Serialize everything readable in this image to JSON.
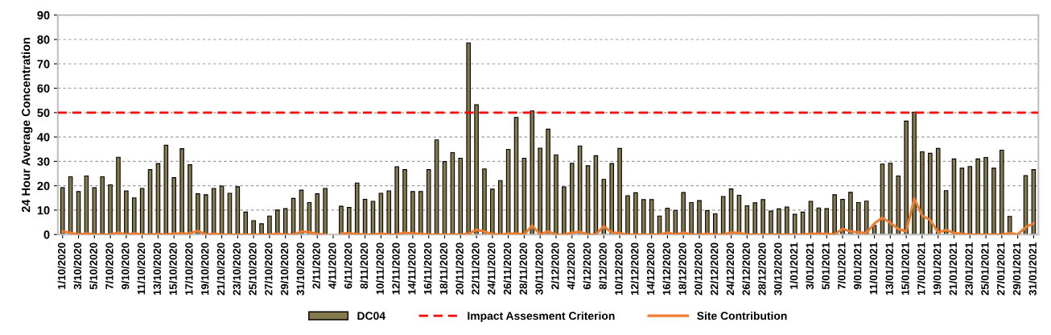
{
  "chart_data": {
    "type": "bar",
    "ylabel": "24 Hour Average Concentration",
    "categories": [
      "1/10/2020",
      null,
      "3/10/2020",
      null,
      "5/10/2020",
      null,
      "7/10/2020",
      null,
      "9/10/2020",
      null,
      "11/10/2020",
      null,
      "13/10/2020",
      null,
      "15/10/2020",
      null,
      "17/10/2020",
      null,
      "19/10/2020",
      null,
      "21/10/2020",
      null,
      "23/10/2020",
      null,
      "25/10/2020",
      null,
      "27/10/2020",
      null,
      "29/10/2020",
      null,
      "31/10/2020",
      null,
      "2/11/2020",
      null,
      "4/11/2020",
      null,
      "6/11/2020",
      null,
      "8/11/2020",
      null,
      "10/11/2020",
      null,
      "12/11/2020",
      null,
      "14/11/2020",
      null,
      "16/11/2020",
      null,
      "18/11/2020",
      null,
      "20/11/2020",
      null,
      "22/11/2020",
      null,
      "24/11/2020",
      null,
      "26/11/2020",
      null,
      "28/11/2020",
      null,
      "30/11/2020",
      null,
      "2/12/2020",
      null,
      "4/12/2020",
      null,
      "6/12/2020",
      null,
      "8/12/2020",
      null,
      "10/12/2020",
      null,
      "12/12/2020",
      null,
      "14/12/2020",
      null,
      "16/12/2020",
      null,
      "18/12/2020",
      null,
      "20/12/2020",
      null,
      "22/12/2020",
      null,
      "24/12/2020",
      null,
      "26/12/2020",
      null,
      "28/12/2020",
      null,
      "30/12/2020",
      null,
      "1/01/2021",
      null,
      "3/01/2021",
      null,
      "5/01/2021",
      null,
      "7/01/2021",
      null,
      "9/01/2021",
      null,
      "11/01/2021",
      null,
      "13/01/2021",
      null,
      "15/01/2021",
      null,
      "17/01/2021",
      null,
      "19/01/2021",
      null,
      "21/01/2021",
      null,
      "23/01/2021",
      null,
      "25/01/2021",
      null,
      "27/01/2021",
      null,
      "29/01/2021",
      null,
      "31/01/2021"
    ],
    "series": [
      {
        "name": "DC04",
        "color": "#857a4c",
        "values": [
          19.2,
          23.7,
          17.6,
          24,
          19.2,
          23.7,
          20.4,
          31.7,
          17.9,
          15,
          18.9,
          26.6,
          29.1,
          36.6,
          23.3,
          35.2,
          28.6,
          16.7,
          16.3,
          18.9,
          19.9,
          16.9,
          19.6,
          9.2,
          5.7,
          4.4,
          7.6,
          10,
          10.6,
          14.8,
          18.2,
          13.1,
          16.7,
          18.9,
          null,
          11.6,
          11.1,
          21.1,
          14.4,
          13.6,
          16.9,
          17.9,
          27.8,
          26.6,
          17.6,
          17.6,
          26.6,
          38.8,
          29.9,
          33.6,
          31.3,
          78.6,
          53.2,
          26.9,
          18.6,
          22.1,
          34.9,
          48,
          31.3,
          50.7,
          35.4,
          43.2,
          32.7,
          19.5,
          29.2,
          36.3,
          28.2,
          32.3,
          22.6,
          29.1,
          35.3,
          15.9,
          17.1,
          14.3,
          14.3,
          7.6,
          10.8,
          9.9,
          17.2,
          13.1,
          13.9,
          9.8,
          8.5,
          15.6,
          18.7,
          16.1,
          11.8,
          13,
          14.3,
          9.6,
          10.5,
          11.3,
          8.3,
          9.2,
          13.6,
          10.9,
          10.6,
          16.3,
          14.4,
          17.3,
          13.1,
          13.7,
          3.7,
          28.9,
          29.2,
          24,
          46.5,
          50.2,
          33.9,
          33.3,
          35.3,
          18,
          31,
          27.2,
          27.9,
          31,
          31.6,
          27.2,
          34.6,
          7.4,
          null,
          24.2,
          26.6
        ]
      },
      {
        "name": "Site Contribution",
        "type": "line",
        "color": "#ed7d31",
        "values": [
          1.2,
          0.7,
          0,
          0.5,
          0,
          0,
          0,
          0.8,
          0,
          0.5,
          0,
          0,
          0.2,
          0,
          0.4,
          0.4,
          0.5,
          1.5,
          0,
          0.3,
          0,
          0,
          0,
          0,
          0,
          0,
          0,
          0.3,
          0,
          0,
          1.2,
          1,
          0.2,
          0,
          null,
          0.5,
          0.5,
          0.2,
          0,
          0,
          0.4,
          0,
          0,
          0.8,
          0.5,
          0.3,
          0,
          0,
          0,
          0,
          0,
          0.3,
          2,
          1.2,
          0.2,
          0,
          0.4,
          0.4,
          0,
          3.7,
          0,
          1.3,
          0,
          0,
          0.7,
          1.1,
          0,
          0,
          3.4,
          0.8,
          0.6,
          0,
          0,
          0,
          0,
          0,
          0.8,
          0,
          0.8,
          0,
          0,
          0.3,
          0,
          0,
          0.8,
          0.7,
          0,
          0,
          0,
          0,
          0,
          0,
          0,
          0,
          0.3,
          0.3,
          0.3,
          0,
          2.4,
          1.2,
          0.9,
          0.6,
          4.5,
          6.9,
          4.8,
          2.3,
          1.2,
          14.8,
          7.7,
          6,
          0.8,
          1.9,
          0.6,
          0.2,
          0,
          0,
          0,
          0,
          0,
          0.6,
          0,
          3,
          4.6
        ]
      }
    ],
    "ref_lines": [
      {
        "axis": "y",
        "value": 50,
        "label": "Impact Assesment Criterion",
        "color": "#ff0000",
        "line_style": "dashed"
      }
    ],
    "ylim": [
      0,
      90
    ],
    "yticks": [
      0,
      10,
      20,
      30,
      40,
      50,
      60,
      70,
      80,
      90
    ],
    "grid": "y",
    "legend": "bottom",
    "marker": "none",
    "line_style": "solid"
  }
}
